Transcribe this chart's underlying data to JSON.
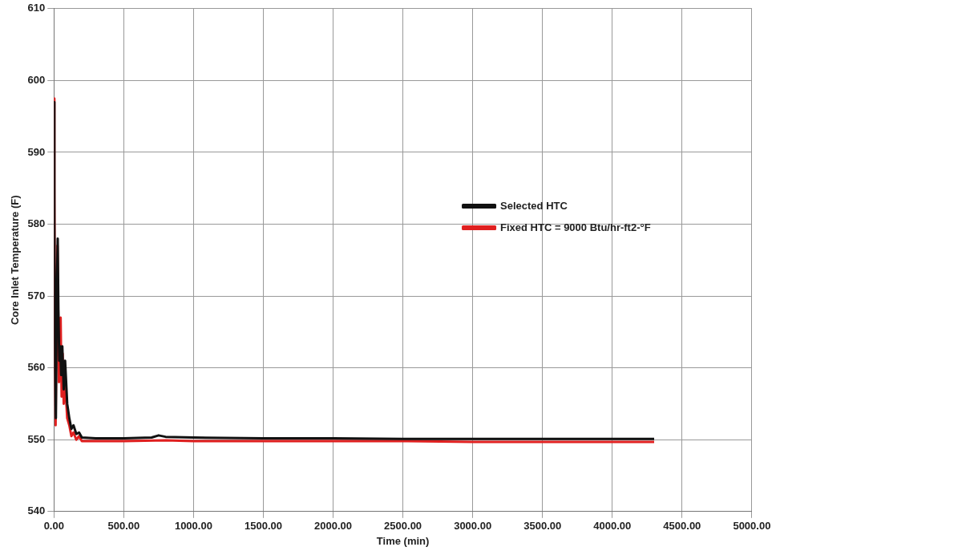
{
  "chart_data": {
    "type": "line",
    "xlabel": "Time (min)",
    "ylabel": "Core Inlet Temperature (F)",
    "xlim": [
      0,
      5000
    ],
    "ylim": [
      540,
      610
    ],
    "xticks": [
      {
        "value": 0,
        "label": "0.00"
      },
      {
        "value": 500,
        "label": "500.00"
      },
      {
        "value": 1000,
        "label": "1000.00"
      },
      {
        "value": 1500,
        "label": "1500.00"
      },
      {
        "value": 2000,
        "label": "2000.00"
      },
      {
        "value": 2500,
        "label": "2500.00"
      },
      {
        "value": 3000,
        "label": "3000.00"
      },
      {
        "value": 3500,
        "label": "3500.00"
      },
      {
        "value": 4000,
        "label": "4000.00"
      },
      {
        "value": 4500,
        "label": "4500.00"
      },
      {
        "value": 5000,
        "label": "5000.00"
      }
    ],
    "yticks": [
      540,
      550,
      560,
      570,
      580,
      590,
      600,
      610
    ],
    "grid": true,
    "legend": "right",
    "marker": "none",
    "line_style": "solid",
    "series": [
      {
        "name": "Selected HTC",
        "color": "#111111",
        "x": [
          0,
          3,
          8,
          14,
          20,
          27,
          32,
          38,
          45,
          52,
          60,
          70,
          80,
          95,
          110,
          125,
          140,
          160,
          180,
          200,
          300,
          500,
          700,
          750,
          800,
          1000,
          1500,
          2000,
          2500,
          3000,
          3500,
          4000,
          4300
        ],
        "values": [
          597,
          580,
          560,
          553,
          570,
          578,
          568,
          561,
          563,
          559,
          563,
          557,
          561,
          555,
          553,
          551.5,
          552,
          550.8,
          551,
          550.3,
          550.2,
          550.2,
          550.3,
          550.6,
          550.4,
          550.3,
          550.2,
          550.2,
          550.1,
          550.1,
          550.1,
          550.1,
          550.1
        ]
      },
      {
        "name": "Fixed HTC = 9000 Btu/hr-ft2-°F",
        "color": "#e02020",
        "x": [
          0,
          3,
          8,
          12,
          18,
          25,
          30,
          36,
          42,
          48,
          55,
          62,
          70,
          80,
          95,
          110,
          125,
          140,
          160,
          180,
          200,
          300,
          500,
          800,
          1000,
          1500,
          2000,
          2500,
          3000,
          3500,
          4000,
          4300
        ],
        "values": [
          597.5,
          585,
          560,
          552,
          566,
          577,
          null,
          558,
          566,
          567,
          556,
          562,
          555,
          558,
          553,
          552,
          550.5,
          551,
          550,
          550.5,
          549.8,
          549.8,
          549.8,
          549.9,
          549.8,
          549.8,
          549.8,
          549.8,
          549.7,
          549.7,
          549.7,
          549.7
        ]
      }
    ]
  }
}
